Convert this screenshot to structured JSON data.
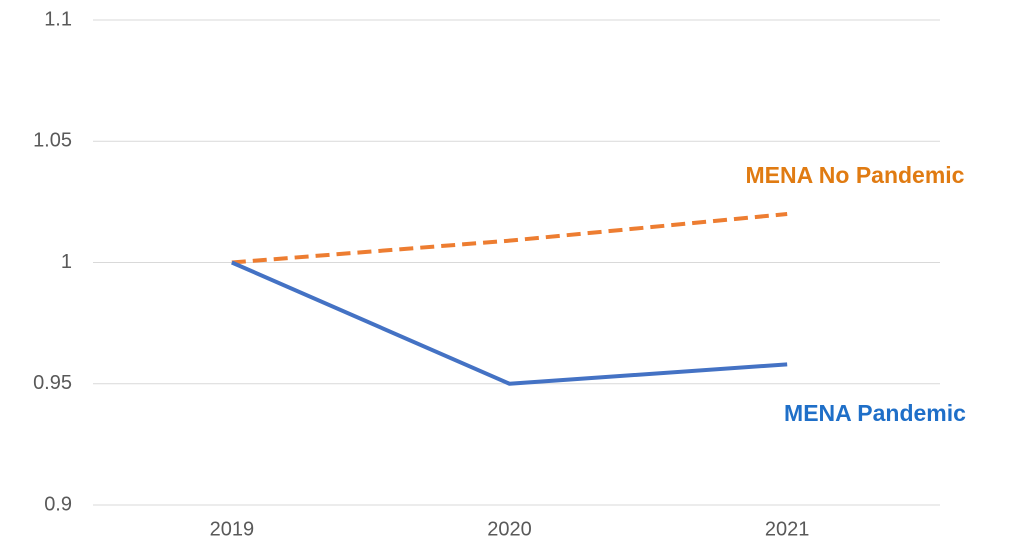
{
  "chart_data": {
    "type": "line",
    "categories": [
      "2019",
      "2020",
      "2021"
    ],
    "series": [
      {
        "name": "MENA No Pandemic",
        "color": "#ed7d31",
        "label_color": "#e07b12",
        "line_style": "dashed",
        "values": [
          1,
          1.009,
          1.02
        ]
      },
      {
        "name": "MENA Pandemic",
        "color": "#4472c4",
        "label_color": "#1f6fc8",
        "line_style": "solid",
        "values": [
          1,
          0.95,
          0.958
        ]
      }
    ],
    "ylim": [
      0.9,
      1.1
    ],
    "yticks": [
      0.9,
      0.95,
      1,
      1.05,
      1.1
    ],
    "grid": true
  }
}
